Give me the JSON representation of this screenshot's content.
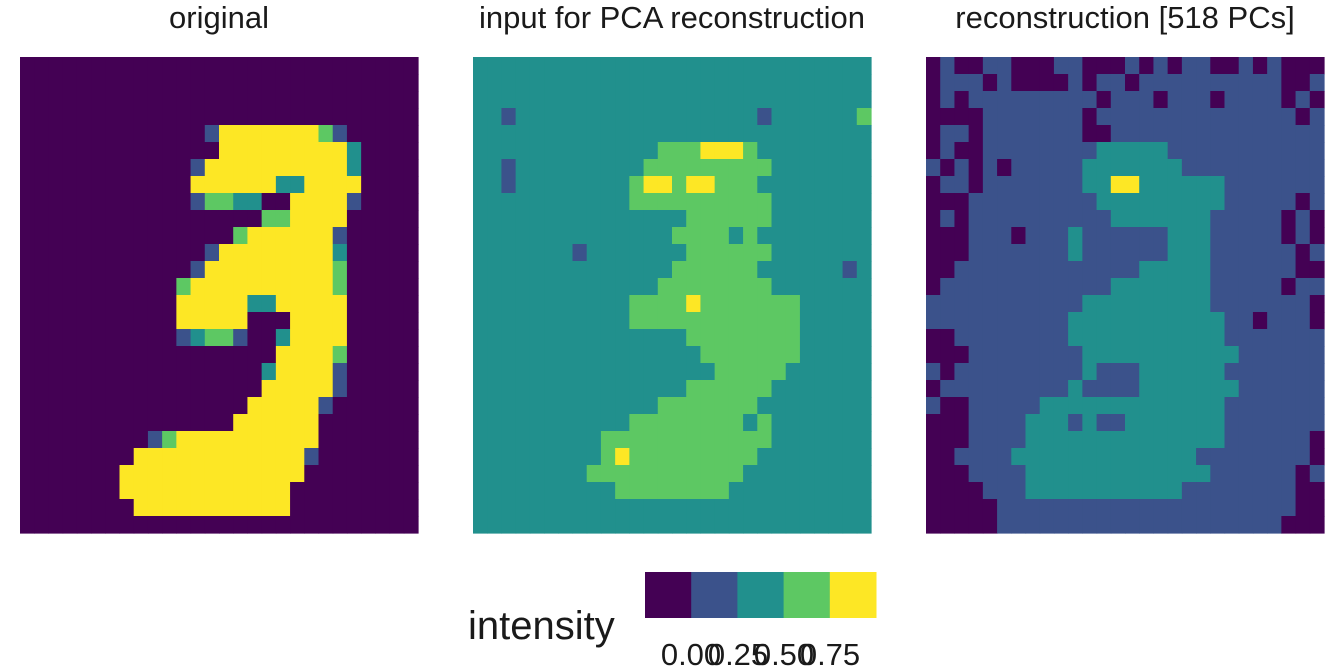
{
  "chart_data": [
    {
      "type": "heatmap",
      "title": "original",
      "grid_shape": [
        28,
        28
      ],
      "value_range": [
        0,
        1
      ],
      "fill": [
        "aaaaaaaaaaaaaaaaaaaaaaaaaaaa",
        "aaaaaaaaaaaaaaaaaaaaaaaaaaaa",
        "aaaaaaaaaaaaaaaaaaaaaaaaaaaa",
        "aaaaaaaaaaaaaaaaaaaaaaaaaaaa",
        "aaaaaaaaaaaaabeeeeeeedbaaaaa",
        "aaaaaaaaaaaaaaeeeeeeeeecaaaa",
        "aaaaaaaaaaaabeeeeeeeeeecaaaa",
        "aaaaaaaaaaaaeeeeeecceeeeaaaa",
        "aaaaaaaaaaaabddccaaeeeebaaaa",
        "aaaaaaaaaaaaaaaaaddeeeeaaaaa",
        "aaaaaaaaaaaaaaadeeeeeebaaaaa",
        "aaaaaaaaaaaaabeeeeeeeecaaaaa",
        "aaaaaaaaaaaabeeeeeeeeedaaaaa",
        "aaaaaaaaaaadeeeeeeeeeedaaaaa",
        "aaaaaaaaaaaeeeeecceeeeeaaaaa",
        "aaaaaaaaaaaeeeeeaaaeeeeaaaaa",
        "aaaaaaaaaaabcddbaaceeeeaaaaa",
        "aaaaaaaaaaaaaaaaaaeeeedaaaaa",
        "aaaaaaaaaaaaaaaaaceeeebaaaaa",
        "aaaaaaaaaaaaaaaaaeeeeebaaaaa",
        "aaaaaaaaaaaaaaaaeeeeebaaaaaa",
        "aaaaaaaaaaaaaaaeeeeeeaaaaaaa",
        "aaaaaaaaabdeeeeeeeeeeaaaaaaa",
        "aaaaaaaaeeeeeeeeeeeebaaaaaaa",
        "aaaaaaaeeeeeeeeeeeeeaaaaaaaa",
        "aaaaaaaeeeeeeeeeeeeaaaaaaaaa",
        "aaaaaaaaeeeeeeeeeeeaaaaaaaaa",
        "aaaaaaaaaaaaaaaaaaaaaaaaaaaa"
      ]
    },
    {
      "type": "heatmap",
      "title": "input for PCA reconstruction",
      "grid_shape": [
        28,
        28
      ],
      "value_range": [
        0,
        1
      ],
      "fill": [
        "cccccccccccccccccccccccccccc",
        "cccccccccccccccccccccccccccc",
        "cccccccccccccccccccccccccccc",
        "ccbcccccccccccccccccbccccccd",
        "cccccccccccccccccccccccccccc",
        "cccccccccccccdddeeedcccccccc",
        "ccbcccccccccdddddddddccccccc",
        "ccbccccccccdeedeedddcccccccc",
        "cccccccccccddddddddddccccccc",
        "cccccccccccccccddddddccccccc",
        "ccccccccccccccddddcdcccccccc",
        "cccccccbcccccccddddddccccccc",
        "ccccccccccccccddddddccccccbc",
        "cccccccccccccddddddddccccccc",
        "cccccccccccddddedddddddccccc",
        "cccccccccccddddddddddddccccc",
        "cccccccccccccccddddddddccccc",
        "ccccccccccccccccdddddddccccc",
        "cccccccccccccccccdddddcccccc",
        "cccccccccccccccddddddccccccc",
        "cccccccccccccdddddddcccccccc",
        "cccccccccccddddddddcdccccccc",
        "cccccccccddddddddddddccccccc",
        "cccccccccdedddddddddcccccccc",
        "ccccccccdddddddddddccccccccc",
        "ccccccccccddddddddcccccccccc",
        "cccccccccccccccccccccccccccc",
        "cccccccccccccccccccccccccccc"
      ]
    },
    {
      "type": "heatmap",
      "title": "reconstruction [518 PCs]",
      "grid_shape": [
        28,
        28
      ],
      "value_range": [
        0,
        1
      ],
      "fill": [
        "abaabbaaabbaaabababbaababaaa",
        "abbbabaaaababbabbbbbbbbbbaab",
        "ababbbbbbbbbabbbabbbabbbbaba",
        "aaaabbbbbbbabbbbbbbbbbbbbbab",
        "abbabbbbbbbaabbbbbbbbbbbbbbb",
        "abaabbbbbbbbcccccbbbbbbbbbbb",
        "babababbbbbcccccccbbbbbbbbbb",
        "abbabbbbbbbcceeccccccbbbbbbb",
        "aaabbbbbbbbbcccccccccbbbbbab",
        "ababbbbbbbbbbcccccccbbbbbaba",
        "aaabbbabbbcbbbbbbcccbbbbbaba",
        "aaabbbbbbbcbbbbbbcccbbbbbbab",
        "aabbbbbbbbbbbbbcccccbbbbbbaa",
        "abbbbbbbbbbbbcccccccbbbbbabb",
        "bbbbbbbbbbbcccccccccbbbbbbba",
        "bbbbbbbbbbcccccccccccbbabbba",
        "aabbbbbbbbcccccccccccbbbbbbb",
        "aaabbbbbbbbcccccccccccbbbbbb",
        "babbbbbbbbbcbbbccccccbbbbbbb",
        "abbbbbbbbbcbbbbcccccccbbbbbb",
        "baabbbbbcccccccccccccbbbbbbb",
        "aaabbbbcccbcbbcccccccbbbbbbb",
        "aaabbbbccccccccccccccbbbbbba",
        "aabbbbcccccccccccccbbbbbbbba",
        "aaabbbbcccccccccccccbbbbbbab",
        "aaaabbbcccccccccccbbbbbbbbaa",
        "aaaaabbbbbbbbbbbbbbbbbbbbbaa",
        "aaaaabbbbbbbbbbbbbbbbbbbbaaa"
      ]
    }
  ],
  "legend": {
    "title": "intensity",
    "bins": [
      0.1,
      0.3,
      0.5,
      0.7,
      0.9
    ],
    "tick_labels": [
      "0.00",
      "0.25",
      "0.50",
      "0.75"
    ],
    "colors": [
      "#440154",
      "#3b528b",
      "#21908d",
      "#5dc863",
      "#fde725"
    ]
  }
}
